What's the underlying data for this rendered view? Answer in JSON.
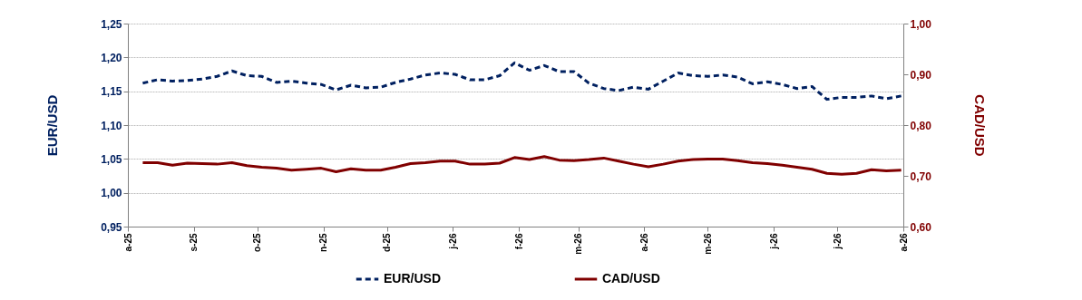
{
  "chart_data": {
    "type": "line",
    "ylabel": "EUR/USD",
    "y2label": "CAD/USD",
    "x": [
      "2025-08-08",
      "2025-08-15",
      "2025-08-22",
      "2025-08-29",
      "2025-09-05",
      "2025-09-12",
      "2025-09-19",
      "2025-09-26",
      "2025-10-03",
      "2025-10-10",
      "2025-10-17",
      "2025-10-24",
      "2025-10-31",
      "2025-11-07",
      "2025-11-14",
      "2025-11-21",
      "2025-11-28",
      "2025-12-05",
      "2025-12-12",
      "2025-12-19",
      "2025-12-26",
      "2026-01-02",
      "2026-01-09",
      "2026-01-16",
      "2026-01-23",
      "2026-01-30",
      "2026-02-06",
      "2026-02-13",
      "2026-02-20",
      "2026-02-27",
      "2026-03-06",
      "2026-03-13",
      "2026-03-20",
      "2026-03-27",
      "2026-04-03",
      "2026-04-10",
      "2026-04-17",
      "2026-04-24",
      "2026-05-01",
      "2026-05-08",
      "2026-05-15",
      "2026-05-22",
      "2026-05-29",
      "2026-06-05",
      "2026-06-12",
      "2026-06-19",
      "2026-06-26",
      "2026-07-03",
      "2026-07-10",
      "2026-07-17",
      "2026-07-24",
      "2026-07-31"
    ],
    "series": [
      {
        "name": "EUR/USD",
        "color": "#002060",
        "line_style": "dashed",
        "values": [
          1.162,
          1.167,
          1.165,
          1.166,
          1.168,
          1.172,
          1.18,
          1.173,
          1.172,
          1.163,
          1.165,
          1.162,
          1.16,
          1.152,
          1.159,
          1.155,
          1.156,
          1.163,
          1.168,
          1.174,
          1.177,
          1.175,
          1.167,
          1.167,
          1.173,
          1.192,
          1.181,
          1.188,
          1.179,
          1.179,
          1.162,
          1.154,
          1.151,
          1.156,
          1.153,
          1.165,
          1.177,
          1.173,
          1.172,
          1.174,
          1.171,
          1.161,
          1.164,
          1.16,
          1.154,
          1.157,
          1.138,
          1.141,
          1.141,
          1.143,
          1.139,
          1.143
        ]
      },
      {
        "name": "CAD/USD",
        "color": "#800000",
        "line_style": "solid",
        "axis": "y2",
        "values": [
          0.726,
          0.726,
          0.721,
          0.725,
          0.724,
          0.723,
          0.726,
          0.72,
          0.717,
          0.715,
          0.711,
          0.713,
          0.715,
          0.708,
          0.714,
          0.711,
          0.711,
          0.717,
          0.724,
          0.726,
          0.729,
          0.729,
          0.723,
          0.723,
          0.725,
          0.736,
          0.732,
          0.738,
          0.731,
          0.73,
          0.732,
          0.735,
          0.729,
          0.723,
          0.718,
          0.723,
          0.729,
          0.732,
          0.733,
          0.733,
          0.73,
          0.726,
          0.724,
          0.721,
          0.717,
          0.713,
          0.705,
          0.703,
          0.705,
          0.712,
          0.71,
          0.711
        ]
      }
    ],
    "xlim": [
      "2025-08-01",
      "2026-08-01"
    ],
    "xticks": [
      {
        "value": "2025-08-01",
        "label": "a-25"
      },
      {
        "value": "2025-09-01",
        "label": "s-25"
      },
      {
        "value": "2025-10-01",
        "label": "o-25"
      },
      {
        "value": "2025-11-01",
        "label": "n-25"
      },
      {
        "value": "2025-12-01",
        "label": "d-25"
      },
      {
        "value": "2026-01-01",
        "label": "j-26"
      },
      {
        "value": "2026-02-01",
        "label": "f-26"
      },
      {
        "value": "2026-03-01",
        "label": "m-26"
      },
      {
        "value": "2026-04-01",
        "label": "a-26"
      },
      {
        "value": "2026-05-01",
        "label": "m-26"
      },
      {
        "value": "2026-06-01",
        "label": "j-26"
      },
      {
        "value": "2026-07-01",
        "label": "j-26"
      },
      {
        "value": "2026-08-01",
        "label": "a-26"
      }
    ],
    "ylim": [
      0.95,
      1.25
    ],
    "yticks": [
      {
        "value": 0.95,
        "label": "0,95"
      },
      {
        "value": 1.0,
        "label": "1,00"
      },
      {
        "value": 1.05,
        "label": "1,05"
      },
      {
        "value": 1.1,
        "label": "1,10"
      },
      {
        "value": 1.15,
        "label": "1,15"
      },
      {
        "value": 1.2,
        "label": "1,20"
      },
      {
        "value": 1.25,
        "label": "1,25"
      }
    ],
    "y2lim": [
      0.6,
      1.0
    ],
    "y2ticks": [
      {
        "value": 0.6,
        "label": "0,60"
      },
      {
        "value": 0.7,
        "label": "0,70"
      },
      {
        "value": 0.8,
        "label": "0,80"
      },
      {
        "value": 0.9,
        "label": "0,90"
      },
      {
        "value": 1.0,
        "label": "1,00"
      }
    ],
    "grid": "y",
    "legend": "bottom",
    "marker": "none"
  }
}
